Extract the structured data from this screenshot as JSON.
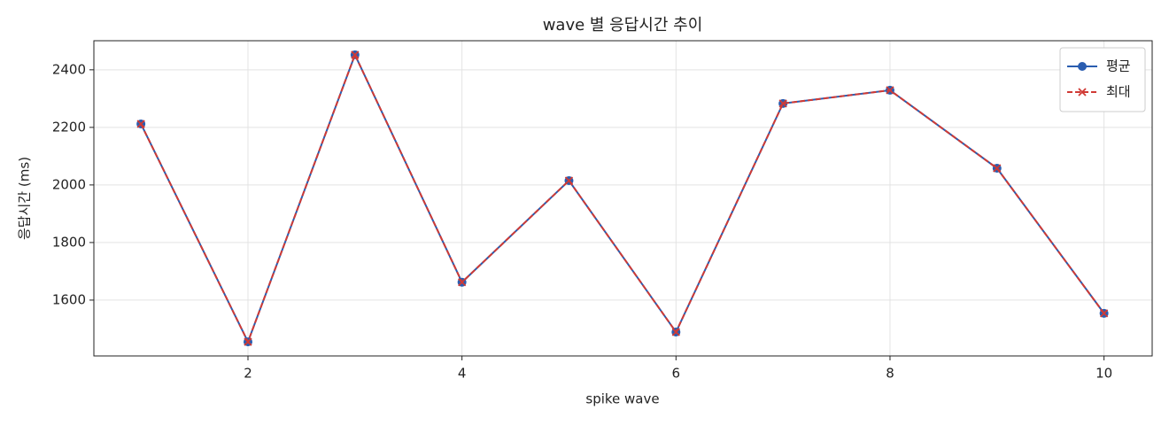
{
  "chart_data": {
    "type": "line",
    "title": "wave 별 응답시간 추이",
    "x_label": "spike wave",
    "y_label": "응답시간 (ms)",
    "x": [
      1,
      2,
      3,
      4,
      5,
      6,
      7,
      8,
      9,
      10
    ],
    "series": [
      {
        "name": "평균",
        "color": "#2a5db0",
        "linestyle": "solid",
        "marker": "circle",
        "values": [
          2212,
          1455,
          2452,
          1662,
          2015,
          1489,
          2283,
          2329,
          2058,
          1554
        ]
      },
      {
        "name": "최대",
        "color": "#d03a35",
        "linestyle": "dashed",
        "marker": "x",
        "values": [
          2212,
          1455,
          2452,
          1662,
          2015,
          1489,
          2283,
          2329,
          2058,
          1554
        ]
      }
    ],
    "xlim": [
      0.56,
      10.45
    ],
    "xticks": [
      2,
      4,
      6,
      8,
      10
    ],
    "ylim": [
      1406,
      2501
    ],
    "yticks": [
      1600,
      1800,
      2000,
      2200,
      2400
    ],
    "grid": true,
    "legend": "upper right"
  }
}
